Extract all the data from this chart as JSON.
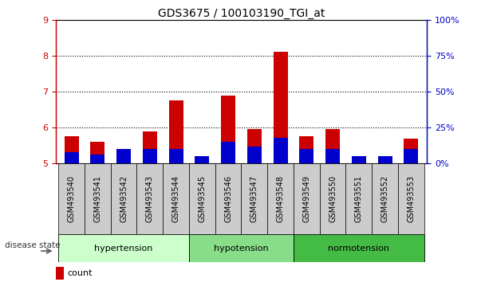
{
  "title": "GDS3675 / 100103190_TGI_at",
  "samples": [
    "GSM493540",
    "GSM493541",
    "GSM493542",
    "GSM493543",
    "GSM493544",
    "GSM493545",
    "GSM493546",
    "GSM493547",
    "GSM493548",
    "GSM493549",
    "GSM493550",
    "GSM493551",
    "GSM493552",
    "GSM493553"
  ],
  "count_values": [
    5.75,
    5.6,
    5.25,
    5.9,
    6.75,
    5.2,
    6.9,
    5.95,
    8.1,
    5.75,
    5.95,
    5.1,
    5.1,
    5.7
  ],
  "percentile_values": [
    8,
    6,
    10,
    10,
    10,
    5,
    15,
    12,
    18,
    10,
    10,
    5,
    5,
    10
  ],
  "y_min": 5.0,
  "y_max": 9.0,
  "y_ticks_left": [
    5,
    6,
    7,
    8,
    9
  ],
  "y_ticks_right": [
    0,
    25,
    50,
    75,
    100
  ],
  "y_labels_right": [
    "0%",
    "25%",
    "50%",
    "75%",
    "100%"
  ],
  "count_color": "#cc0000",
  "percentile_color": "#0000cc",
  "groups": [
    {
      "label": "hypertension",
      "start": 0,
      "end": 4,
      "color": "#ccffcc"
    },
    {
      "label": "hypotension",
      "start": 5,
      "end": 8,
      "color": "#88dd88"
    },
    {
      "label": "normotension",
      "start": 9,
      "end": 13,
      "color": "#44bb44"
    }
  ],
  "title_fontsize": 10,
  "axis_fontsize": 8,
  "legend_fontsize": 8,
  "xticklabel_fontsize": 7
}
